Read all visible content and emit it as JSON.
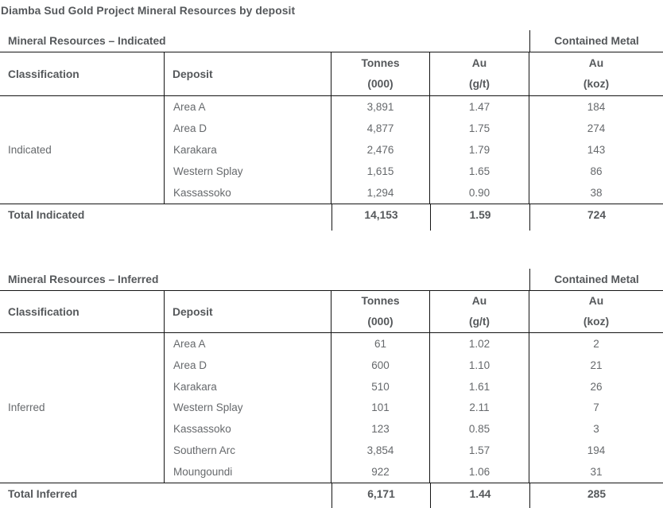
{
  "title": "Diamba Sud Gold Project Mineral Resources by deposit",
  "colors": {
    "heading_text": "#55585b",
    "body_text": "#66696c",
    "border": "#141414",
    "background": "#ffffff"
  },
  "tables": [
    {
      "caption": "Mineral Resources – Indicated",
      "group_header": "Contained Metal",
      "columns": {
        "classification": "Classification",
        "deposit": "Deposit",
        "tonnes": [
          "Tonnes",
          "(000)"
        ],
        "au": [
          "Au",
          "(g/t)"
        ],
        "koz": [
          "Au",
          "(koz)"
        ]
      },
      "classification": "Indicated",
      "rows": [
        {
          "deposit": "Area A",
          "tonnes": "3,891",
          "au": "1.47",
          "koz": "184"
        },
        {
          "deposit": "Area D",
          "tonnes": "4,877",
          "au": "1.75",
          "koz": "274"
        },
        {
          "deposit": "Karakara",
          "tonnes": "2,476",
          "au": "1.79",
          "koz": "143"
        },
        {
          "deposit": "Western Splay",
          "tonnes": "1,615",
          "au": "1.65",
          "koz": "86"
        },
        {
          "deposit": "Kassassoko",
          "tonnes": "1,294",
          "au": "0.90",
          "koz": "38"
        }
      ],
      "total": {
        "label": "Total Indicated",
        "tonnes": "14,153",
        "au": "1.59",
        "koz": "724"
      }
    },
    {
      "caption": "Mineral Resources – Inferred",
      "group_header": "Contained Metal",
      "columns": {
        "classification": "Classification",
        "deposit": "Deposit",
        "tonnes": [
          "Tonnes",
          "(000)"
        ],
        "au": [
          "Au",
          "(g/t)"
        ],
        "koz": [
          "Au",
          "(koz)"
        ]
      },
      "classification": "Inferred",
      "rows": [
        {
          "deposit": "Area A",
          "tonnes": "61",
          "au": "1.02",
          "koz": "2"
        },
        {
          "deposit": "Area D",
          "tonnes": "600",
          "au": "1.10",
          "koz": "21"
        },
        {
          "deposit": "Karakara",
          "tonnes": "510",
          "au": "1.61",
          "koz": "26"
        },
        {
          "deposit": "Western Splay",
          "tonnes": "101",
          "au": "2.11",
          "koz": "7"
        },
        {
          "deposit": "Kassassoko",
          "tonnes": "123",
          "au": "0.85",
          "koz": "3"
        },
        {
          "deposit": "Southern Arc",
          "tonnes": "3,854",
          "au": "1.57",
          "koz": "194"
        },
        {
          "deposit": "Moungoundi",
          "tonnes": "922",
          "au": "1.06",
          "koz": "31"
        }
      ],
      "total": {
        "label": "Total Inferred",
        "tonnes": "6,171",
        "au": "1.44",
        "koz": "285"
      }
    }
  ],
  "chart_data": [
    {
      "type": "table",
      "title": "Mineral Resources – Indicated",
      "columns": [
        "Classification",
        "Deposit",
        "Tonnes (000)",
        "Au (g/t)",
        "Au (koz)"
      ],
      "group_header": {
        "label": "Contained Metal",
        "applies_to": [
          "Au (koz)"
        ]
      },
      "rows": [
        [
          "Indicated",
          "Area A",
          3891,
          1.47,
          184
        ],
        [
          "Indicated",
          "Area D",
          4877,
          1.75,
          274
        ],
        [
          "Indicated",
          "Karakara",
          2476,
          1.79,
          143
        ],
        [
          "Indicated",
          "Western Splay",
          1615,
          1.65,
          86
        ],
        [
          "Indicated",
          "Kassassoko",
          1294,
          0.9,
          38
        ]
      ],
      "total": [
        "Total Indicated",
        14153,
        1.59,
        724
      ]
    },
    {
      "type": "table",
      "title": "Mineral Resources – Inferred",
      "columns": [
        "Classification",
        "Deposit",
        "Tonnes (000)",
        "Au (g/t)",
        "Au (koz)"
      ],
      "group_header": {
        "label": "Contained Metal",
        "applies_to": [
          "Au (koz)"
        ]
      },
      "rows": [
        [
          "Inferred",
          "Area A",
          61,
          1.02,
          2
        ],
        [
          "Inferred",
          "Area D",
          600,
          1.1,
          21
        ],
        [
          "Inferred",
          "Karakara",
          510,
          1.61,
          26
        ],
        [
          "Inferred",
          "Western Splay",
          101,
          2.11,
          7
        ],
        [
          "Inferred",
          "Kassassoko",
          123,
          0.85,
          3
        ],
        [
          "Inferred",
          "Southern Arc",
          3854,
          1.57,
          194
        ],
        [
          "Inferred",
          "Moungoundi",
          922,
          1.06,
          31
        ]
      ],
      "total": [
        "Total Inferred",
        6171,
        1.44,
        285
      ]
    }
  ]
}
